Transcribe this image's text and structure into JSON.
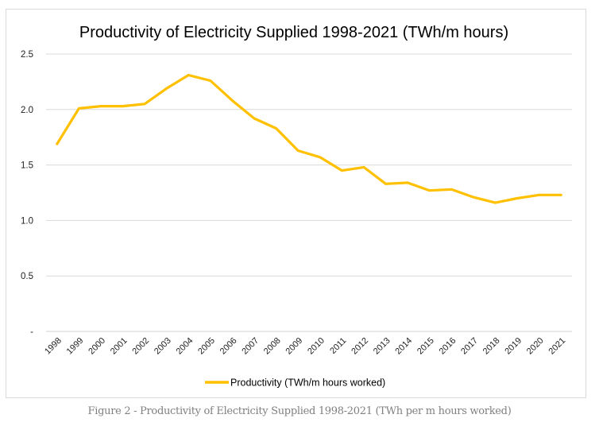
{
  "chart_data": {
    "type": "line",
    "title": "Productivity of Electricity Supplied 1998-2021 (TWh/m hours)",
    "xlabel": "",
    "ylabel": "",
    "categories": [
      "1998",
      "1999",
      "2000",
      "2001",
      "2002",
      "2003",
      "2004",
      "2005",
      "2006",
      "2007",
      "2008",
      "2009",
      "2010",
      "2011",
      "2012",
      "2013",
      "2014",
      "2015",
      "2016",
      "2017",
      "2018",
      "2019",
      "2020",
      "2021"
    ],
    "series": [
      {
        "name": "Productivity (TWh/m hours worked)",
        "color": "#FFC000",
        "values": [
          1.69,
          2.01,
          2.03,
          2.03,
          2.05,
          2.19,
          2.31,
          2.26,
          2.08,
          1.92,
          1.83,
          1.63,
          1.57,
          1.45,
          1.48,
          1.33,
          1.34,
          1.27,
          1.28,
          1.21,
          1.16,
          1.2,
          1.23,
          1.23
        ]
      }
    ],
    "ylim": [
      0,
      2.5
    ],
    "yticks": [
      0,
      0.5,
      1.0,
      1.5,
      2.0,
      2.5
    ],
    "ytick_labels": [
      "-",
      "0.5",
      "1.0",
      "1.5",
      "2.0",
      "2.5"
    ],
    "grid": true,
    "legend": "bottom-center"
  },
  "caption": "Figure 2 - Productivity of Electricity Supplied 1998-2021 (TWh per m hours worked)"
}
